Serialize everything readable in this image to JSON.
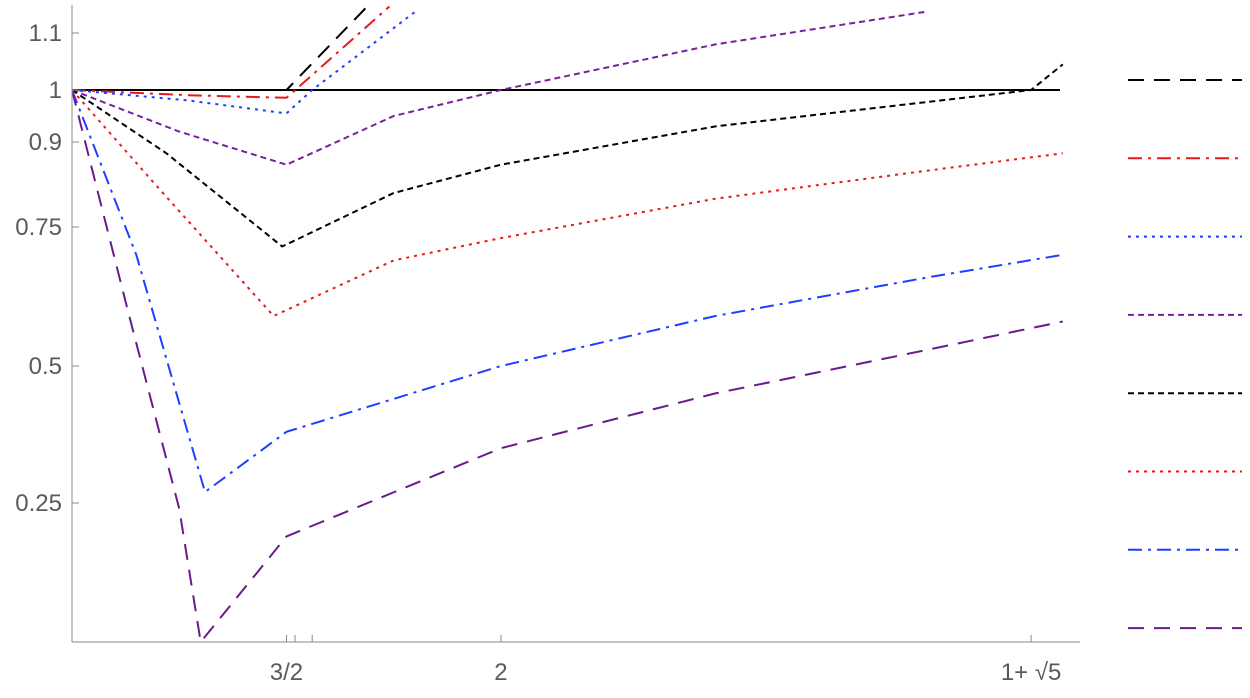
{
  "chart_data": {
    "type": "line",
    "xlim": [
      1,
      3.35
    ],
    "ylim": [
      0,
      1.12
    ],
    "grid": false,
    "legend_placement": "right",
    "x_ticks": [
      {
        "value": 1.5,
        "label": "3/2",
        "show_label": true
      },
      {
        "value": 1.52,
        "label": "",
        "show_label": false
      },
      {
        "value": 1.56,
        "label": "",
        "show_label": false
      },
      {
        "value": 2.0,
        "label": "2",
        "show_label": true
      },
      {
        "value": 3.236,
        "label": "1+ √5",
        "show_label": true
      }
    ],
    "y_ticks": [
      {
        "value": 0.25,
        "label": "0.25"
      },
      {
        "value": 0.5,
        "label": "0.5"
      },
      {
        "value": 0.75,
        "label": "0.75"
      },
      {
        "value": 0.9,
        "label": "0.9"
      },
      {
        "value": 1.0,
        "label": "1"
      },
      {
        "value": 1.1,
        "label": "1.1"
      }
    ],
    "reference_line": {
      "y": 1.0,
      "color": "#000000"
    },
    "series": [
      {
        "color": "#000000",
        "dash": "long-dash",
        "points": [
          [
            1.0,
            1.0
          ],
          [
            1.5,
            1.0
          ],
          [
            1.7,
            1.16
          ]
        ]
      },
      {
        "color": "#e41a1c",
        "dash": "dash-dot",
        "points": [
          [
            1.0,
            1.0
          ],
          [
            1.27,
            0.99
          ],
          [
            1.5,
            0.985
          ],
          [
            1.74,
            1.15
          ]
        ]
      },
      {
        "color": "#1f3fff",
        "dash": "dot",
        "points": [
          [
            1.0,
            1.0
          ],
          [
            1.27,
            0.98
          ],
          [
            1.5,
            0.955
          ],
          [
            1.56,
            1.0
          ],
          [
            1.8,
            1.14
          ]
        ]
      },
      {
        "color": "#7b1fa2",
        "dash": "short-dash",
        "points": [
          [
            1.0,
            1.0
          ],
          [
            1.25,
            0.92
          ],
          [
            1.5,
            0.86
          ],
          [
            1.75,
            0.95
          ],
          [
            2.0,
            1.0
          ],
          [
            2.5,
            1.08
          ],
          [
            2.99,
            1.14
          ]
        ]
      },
      {
        "color": "#000000",
        "dash": "short-dash",
        "points": [
          [
            1.0,
            1.0
          ],
          [
            1.22,
            0.88
          ],
          [
            1.49,
            0.715
          ],
          [
            1.75,
            0.81
          ],
          [
            2.0,
            0.86
          ],
          [
            2.5,
            0.93
          ],
          [
            3.236,
            1.0
          ],
          [
            3.31,
            1.045
          ]
        ]
      },
      {
        "color": "#e41a1c",
        "dash": "dot",
        "points": [
          [
            1.0,
            1.0
          ],
          [
            1.2,
            0.82
          ],
          [
            1.47,
            0.59
          ],
          [
            1.75,
            0.69
          ],
          [
            2.0,
            0.73
          ],
          [
            2.5,
            0.8
          ],
          [
            3.0,
            0.85
          ],
          [
            3.31,
            0.88
          ]
        ]
      },
      {
        "color": "#1f3fff",
        "dash": "dash-dot",
        "points": [
          [
            1.0,
            1.0
          ],
          [
            1.15,
            0.7
          ],
          [
            1.31,
            0.27
          ],
          [
            1.5,
            0.38
          ],
          [
            2.0,
            0.5
          ],
          [
            2.5,
            0.59
          ],
          [
            3.0,
            0.66
          ],
          [
            3.31,
            0.7
          ]
        ]
      },
      {
        "color": "#6a1b8a",
        "dash": "long-dash",
        "points": [
          [
            1.0,
            1.0
          ],
          [
            1.13,
            0.6
          ],
          [
            1.25,
            0.24
          ],
          [
            1.3,
            0.0
          ],
          [
            1.5,
            0.19
          ],
          [
            2.0,
            0.35
          ],
          [
            2.5,
            0.45
          ],
          [
            3.0,
            0.53
          ],
          [
            3.31,
            0.58
          ]
        ]
      }
    ]
  }
}
